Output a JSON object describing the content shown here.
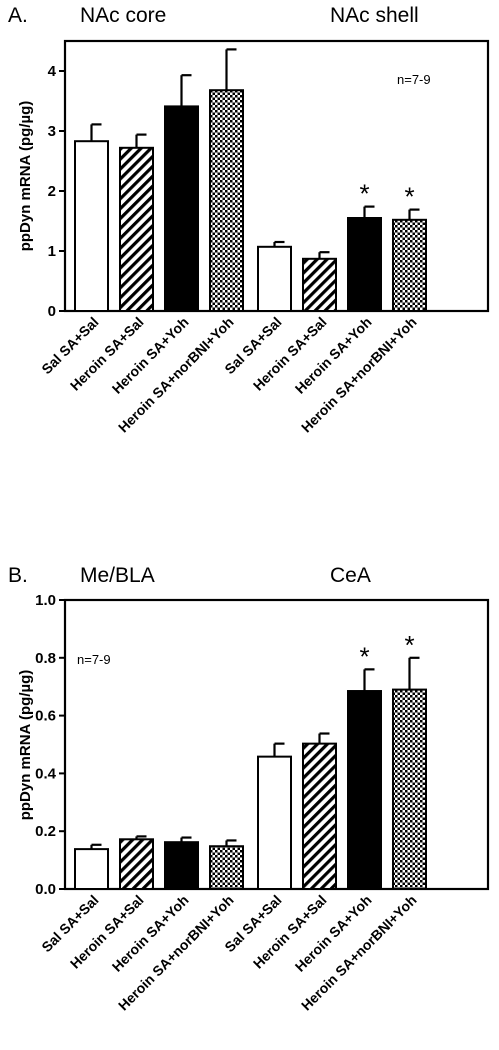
{
  "chart_data": [
    {
      "type": "bar",
      "panel": "A.",
      "region_labels": [
        "NAc core",
        "NAc shell"
      ],
      "ylabel": "ppDyn mRNA (pg/µg)",
      "ylim": [
        0,
        4.5
      ],
      "yticks": [
        "0",
        "1",
        "2",
        "3",
        "4"
      ],
      "ytick_values": [
        0,
        1,
        2,
        3,
        4
      ],
      "note": "n=7-9",
      "groups": [
        {
          "region": "NAc core",
          "categories": [
            "Sal SA+Sal",
            "Heroin SA+Sal",
            "Heroin SA+Yoh",
            "Heroin SA+norBNI+Yoh"
          ],
          "values": [
            2.83,
            2.72,
            3.41,
            3.68
          ],
          "errors": [
            0.28,
            0.22,
            0.52,
            0.68
          ],
          "significant": [
            false,
            false,
            false,
            false
          ]
        },
        {
          "region": "NAc shell",
          "categories": [
            "Sal SA+Sal",
            "Heroin SA+Sal",
            "Heroin SA+Yoh",
            "Heroin SA+norBNI+Yoh"
          ],
          "values": [
            1.07,
            0.87,
            1.55,
            1.52
          ],
          "errors": [
            0.08,
            0.11,
            0.19,
            0.17
          ],
          "significant": [
            false,
            false,
            true,
            true
          ]
        }
      ],
      "significance_marker": "*"
    },
    {
      "type": "bar",
      "panel": "B.",
      "region_labels": [
        "Me/BLA",
        "CeA"
      ],
      "ylabel": "ppDyn mRNA (pg/µg)",
      "ylim": [
        0,
        1.0
      ],
      "yticks": [
        "0.0",
        "0.2",
        "0.4",
        "0.6",
        "0.8",
        "1.0"
      ],
      "ytick_values": [
        0,
        0.2,
        0.4,
        0.6,
        0.8,
        1.0
      ],
      "note": "n=7-9",
      "groups": [
        {
          "region": "Me/BLA",
          "categories": [
            "Sal SA+Sal",
            "Heroin SA+Sal",
            "Heroin SA+Yoh",
            "Heroin SA+norBNI+Yoh"
          ],
          "values": [
            0.138,
            0.172,
            0.162,
            0.148
          ],
          "errors": [
            0.015,
            0.01,
            0.016,
            0.02
          ],
          "significant": [
            false,
            false,
            false,
            false
          ]
        },
        {
          "region": "CeA",
          "categories": [
            "Sal SA+Sal",
            "Heroin SA+Sal",
            "Heroin SA+Yoh",
            "Heroin SA+norBNI+Yoh"
          ],
          "values": [
            0.458,
            0.503,
            0.685,
            0.69
          ],
          "errors": [
            0.045,
            0.035,
            0.075,
            0.11
          ],
          "significant": [
            false,
            false,
            true,
            true
          ]
        }
      ],
      "significance_marker": "*"
    }
  ]
}
